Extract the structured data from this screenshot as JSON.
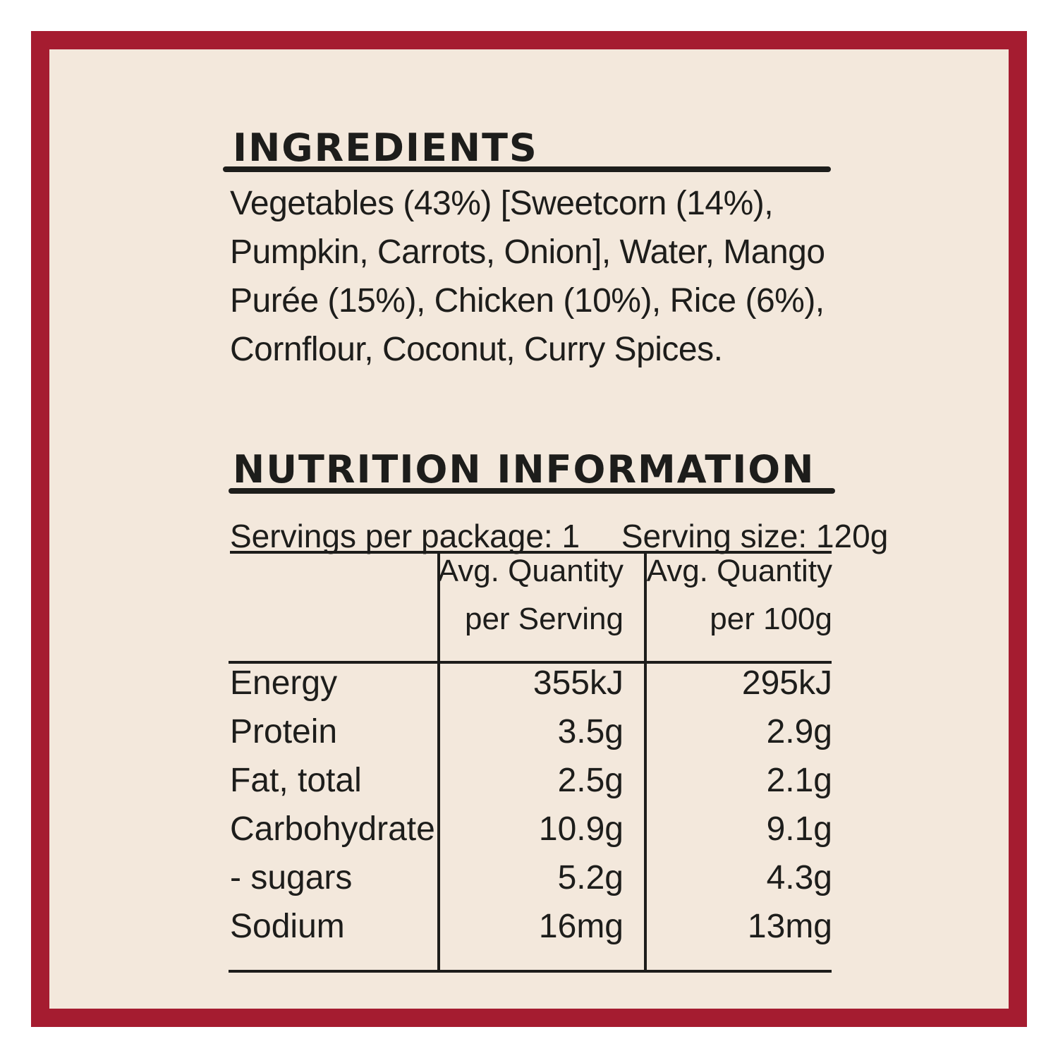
{
  "ingredients": {
    "heading": "INGREDIENTS",
    "lines": [
      "Vegetables (43%) [Sweetcorn (14%),",
      "Pumpkin, Carrots, Onion], Water, Mango",
      "Purée (15%), Chicken (10%), Rice (6%),",
      "Cornflour, Coconut, Curry Spices."
    ]
  },
  "nutrition": {
    "heading": "NUTRITION INFORMATION",
    "servings_per_package": "Servings per package: 1",
    "serving_size": "Serving size: 120g",
    "col_serving_line1": "Avg. Quantity",
    "col_serving_line2": "per Serving",
    "col_100g_line1": "Avg. Quantity",
    "col_100g_line2": "per 100g",
    "rows": [
      {
        "name": "Energy",
        "per_serving": "355kJ",
        "per_100g": "295kJ"
      },
      {
        "name": "Protein",
        "per_serving": "3.5g",
        "per_100g": "2.9g"
      },
      {
        "name": "Fat, total",
        "per_serving": "2.5g",
        "per_100g": "2.1g"
      },
      {
        "name": "Carbohydrate",
        "per_serving": "10.9g",
        "per_100g": "9.1g"
      },
      {
        "name": "- sugars",
        "per_serving": "5.2g",
        "per_100g": "4.3g"
      },
      {
        "name": "Sodium",
        "per_serving": "16mg",
        "per_100g": "13mg"
      }
    ]
  }
}
